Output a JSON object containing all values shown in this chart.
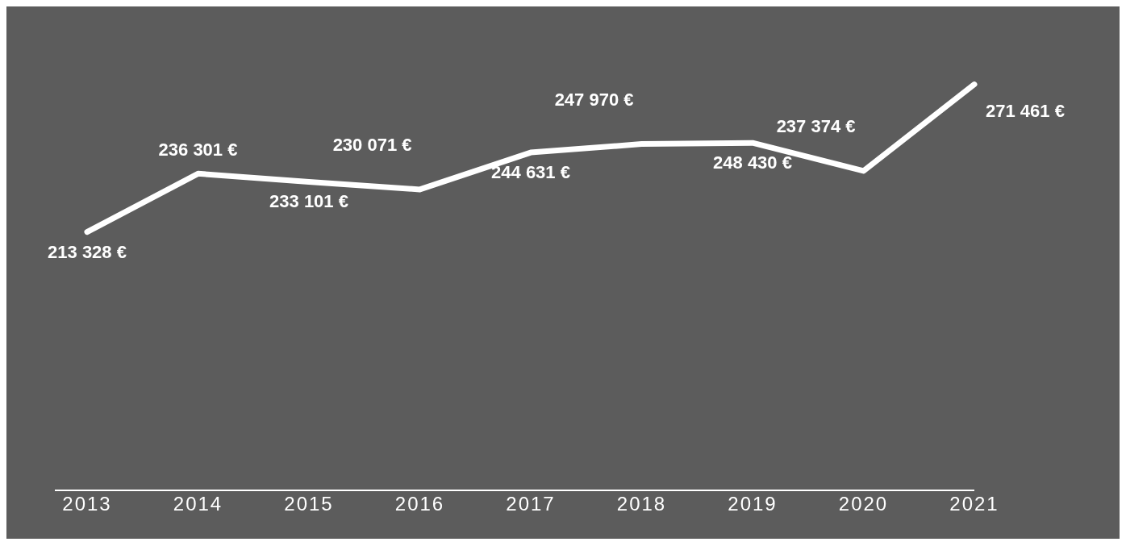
{
  "chart_data": {
    "type": "line",
    "categories": [
      "2013",
      "2014",
      "2015",
      "2016",
      "2017",
      "2018",
      "2019",
      "2020",
      "2021"
    ],
    "series": [
      {
        "color": "#ffffff",
        "values": [
          213328,
          236301,
          233101,
          230071,
          244631,
          247970,
          248430,
          237374,
          271461
        ],
        "value_labels": [
          "213 328 €",
          "236 301 €",
          "233 101 €",
          "230 071 €",
          "244 631 €",
          "247 970 €",
          "248 430 €",
          "237 374 €",
          "271 461 €"
        ]
      }
    ],
    "grid": false,
    "legend": false,
    "marker": "none",
    "line_style": "solid",
    "tick_labels": "x"
  }
}
